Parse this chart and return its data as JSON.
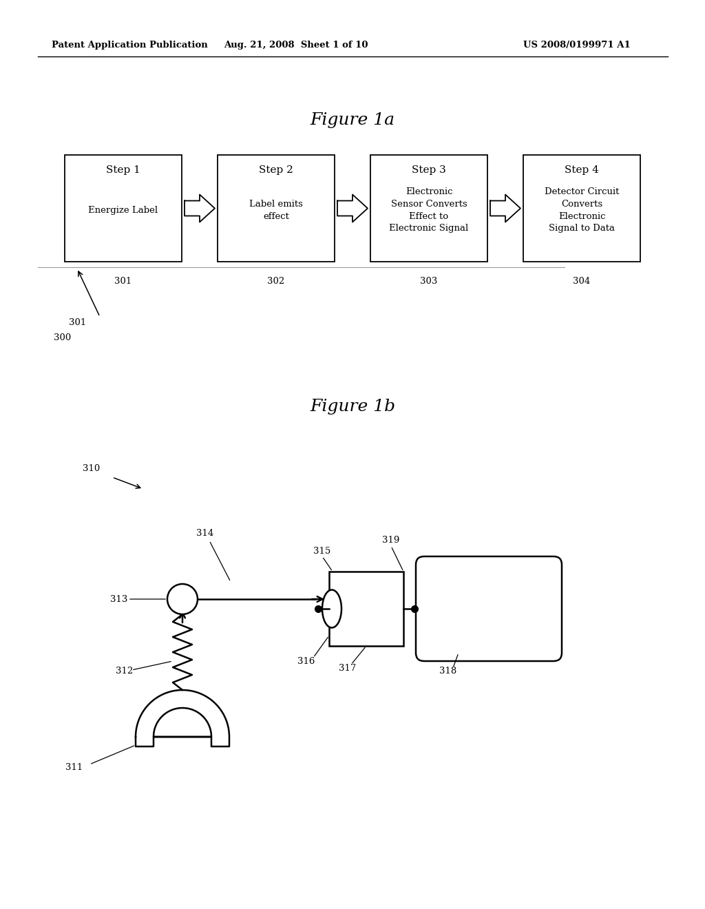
{
  "bg_color": "#ffffff",
  "header_left": "Patent Application Publication",
  "header_mid": "Aug. 21, 2008  Sheet 1 of 10",
  "header_right": "US 2008/0199971 A1",
  "fig1a_title": "Figure 1a",
  "fig1b_title": "Figure 1b",
  "steps": [
    {
      "num": "Step 1",
      "text": "Energize Label",
      "label": "301"
    },
    {
      "num": "Step 2",
      "text": "Label emits\neffect",
      "label": "302"
    },
    {
      "num": "Step 3",
      "text": "Electronic\nSensor Converts\nEffect to\nElectronic Signal",
      "label": "303"
    },
    {
      "num": "Step 4",
      "text": "Detector Circuit\nConverts\nElectronic\nSignal to Data",
      "label": "304"
    }
  ],
  "label_300": "300",
  "label_301": "301"
}
